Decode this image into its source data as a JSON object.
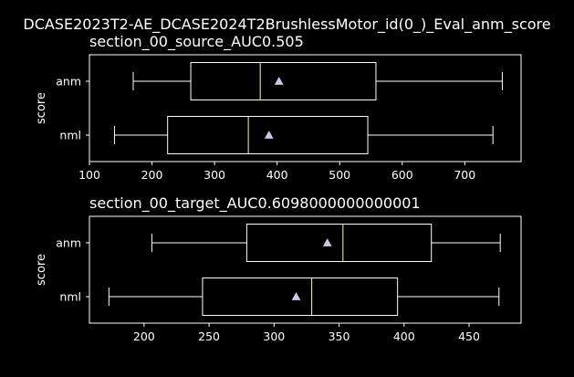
{
  "figure": {
    "suptitle": "DCASE2023T2-AE_DCASE2024T2BrushlessMotor_id(0_)_Eval_anm_score"
  },
  "colors": {
    "background": "#000000",
    "foreground": "#ffffff",
    "median": "#ffffa0",
    "mean_marker": "#c8c8e6"
  },
  "chart_data": [
    {
      "type": "boxplot",
      "orientation": "horizontal",
      "title": "section_00_source_AUC0.505",
      "ylabel": "score",
      "xlim": [
        100,
        790
      ],
      "xticks": [
        100,
        200,
        300,
        400,
        500,
        600,
        700
      ],
      "categories": [
        "anm",
        "nml"
      ],
      "boxes": [
        {
          "label": "anm",
          "whislo": 170,
          "q1": 262,
          "median": 373,
          "mean": 403,
          "q3": 558,
          "whishi": 760
        },
        {
          "label": "nml",
          "whislo": 140,
          "q1": 225,
          "median": 354,
          "mean": 387,
          "q3": 545,
          "whishi": 745
        }
      ]
    },
    {
      "type": "boxplot",
      "orientation": "horizontal",
      "title": "section_00_target_AUC0.6098000000000001",
      "ylabel": "score",
      "xlim": [
        158,
        490
      ],
      "xticks": [
        200,
        250,
        300,
        350,
        400,
        450
      ],
      "categories": [
        "anm",
        "nml"
      ],
      "boxes": [
        {
          "label": "anm",
          "whislo": 206,
          "q1": 279,
          "median": 353,
          "mean": 341,
          "q3": 421,
          "whishi": 474
        },
        {
          "label": "nml",
          "whislo": 173,
          "q1": 245,
          "median": 329,
          "mean": 317,
          "q3": 395,
          "whishi": 473
        }
      ]
    }
  ]
}
